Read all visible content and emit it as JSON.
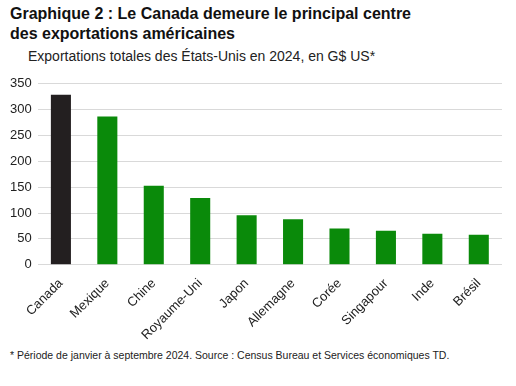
{
  "chart_data": {
    "type": "bar",
    "title": "Graphique 2 : Le Canada demeure le principal centre des exportations américaines",
    "subtitle": "Exportations totales des États-Unis en 2024, en G$ US*",
    "annotations": [
      "* Période de janvier à septembre 2024. Source : Census Bureau et Services économiques TD."
    ],
    "categories": [
      "Canada",
      "Mexique",
      "Chine",
      "Royaume-Uni",
      "Japon",
      "Allemagne",
      "Corée",
      "Singapour",
      "Inde",
      "Brésil"
    ],
    "values": [
      329,
      287,
      153,
      129,
      96,
      88,
      70,
      66,
      60,
      58
    ],
    "colors": [
      "#231f20",
      "#0a8a0a",
      "#0a8a0a",
      "#0a8a0a",
      "#0a8a0a",
      "#0a8a0a",
      "#0a8a0a",
      "#0a8a0a",
      "#0a8a0a",
      "#0a8a0a"
    ],
    "ylim": [
      0,
      350
    ],
    "yticks": [
      0,
      50,
      100,
      150,
      200,
      250,
      300,
      350
    ],
    "grid": true
  }
}
